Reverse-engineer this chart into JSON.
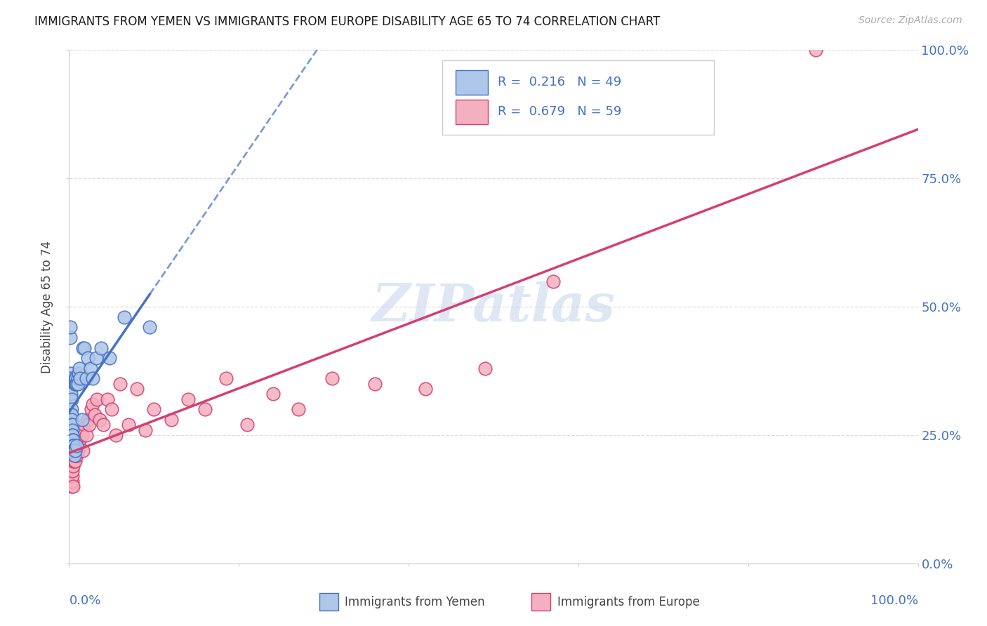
{
  "title": "IMMIGRANTS FROM YEMEN VS IMMIGRANTS FROM EUROPE DISABILITY AGE 65 TO 74 CORRELATION CHART",
  "source": "Source: ZipAtlas.com",
  "ylabel": "Disability Age 65 to 74",
  "legend_label1": "Immigrants from Yemen",
  "legend_label2": "Immigrants from Europe",
  "R1": 0.216,
  "N1": 49,
  "R2": 0.679,
  "N2": 59,
  "color_yemen_fill": "#aec6e8",
  "color_yemen_edge": "#4472c4",
  "color_europe_fill": "#f4b0c0",
  "color_europe_edge": "#d44070",
  "color_line_yemen": "#4472c4",
  "color_line_europe": "#d44070",
  "color_axis_text": "#4472c4",
  "watermark": "ZIPatlas",
  "ytick_labels": [
    "0.0%",
    "25.0%",
    "50.0%",
    "75.0%",
    "100.0%"
  ],
  "ytick_values": [
    0.0,
    0.25,
    0.5,
    0.75,
    1.0
  ],
  "legend_text1": "R =  0.216   N = 49",
  "legend_text2": "R =  0.679   N = 59",
  "bg_color": "#ffffff",
  "grid_color": "#dddddd",
  "yemen_x": [
    0.001,
    0.001,
    0.002,
    0.002,
    0.002,
    0.002,
    0.003,
    0.003,
    0.003,
    0.003,
    0.003,
    0.003,
    0.004,
    0.004,
    0.004,
    0.004,
    0.004,
    0.005,
    0.005,
    0.005,
    0.005,
    0.005,
    0.006,
    0.006,
    0.006,
    0.007,
    0.007,
    0.007,
    0.008,
    0.008,
    0.009,
    0.009,
    0.01,
    0.01,
    0.011,
    0.012,
    0.013,
    0.015,
    0.016,
    0.018,
    0.02,
    0.022,
    0.025,
    0.028,
    0.032,
    0.038,
    0.048,
    0.065,
    0.095
  ],
  "yemen_y": [
    0.44,
    0.46,
    0.37,
    0.36,
    0.34,
    0.33,
    0.32,
    0.3,
    0.29,
    0.29,
    0.28,
    0.27,
    0.27,
    0.26,
    0.25,
    0.25,
    0.24,
    0.24,
    0.24,
    0.23,
    0.23,
    0.22,
    0.22,
    0.22,
    0.21,
    0.35,
    0.36,
    0.22,
    0.36,
    0.35,
    0.35,
    0.23,
    0.36,
    0.35,
    0.37,
    0.38,
    0.36,
    0.28,
    0.42,
    0.42,
    0.36,
    0.4,
    0.38,
    0.36,
    0.4,
    0.42,
    0.4,
    0.48,
    0.46
  ],
  "europe_x": [
    0.001,
    0.002,
    0.002,
    0.003,
    0.003,
    0.004,
    0.004,
    0.004,
    0.005,
    0.005,
    0.005,
    0.006,
    0.006,
    0.007,
    0.007,
    0.007,
    0.008,
    0.008,
    0.009,
    0.009,
    0.01,
    0.01,
    0.011,
    0.012,
    0.013,
    0.014,
    0.015,
    0.016,
    0.018,
    0.02,
    0.022,
    0.024,
    0.026,
    0.028,
    0.03,
    0.033,
    0.036,
    0.04,
    0.045,
    0.05,
    0.055,
    0.06,
    0.07,
    0.08,
    0.09,
    0.1,
    0.12,
    0.14,
    0.16,
    0.185,
    0.21,
    0.24,
    0.27,
    0.31,
    0.36,
    0.42,
    0.49,
    0.57,
    0.88
  ],
  "europe_y": [
    0.2,
    0.18,
    0.17,
    0.16,
    0.15,
    0.16,
    0.17,
    0.18,
    0.19,
    0.2,
    0.15,
    0.2,
    0.21,
    0.2,
    0.21,
    0.22,
    0.21,
    0.22,
    0.22,
    0.21,
    0.23,
    0.22,
    0.23,
    0.24,
    0.25,
    0.26,
    0.25,
    0.22,
    0.27,
    0.25,
    0.28,
    0.27,
    0.3,
    0.31,
    0.29,
    0.32,
    0.28,
    0.27,
    0.32,
    0.3,
    0.25,
    0.35,
    0.27,
    0.34,
    0.26,
    0.3,
    0.28,
    0.32,
    0.3,
    0.36,
    0.27,
    0.33,
    0.3,
    0.36,
    0.35,
    0.34,
    0.38,
    0.55,
    1.0
  ]
}
